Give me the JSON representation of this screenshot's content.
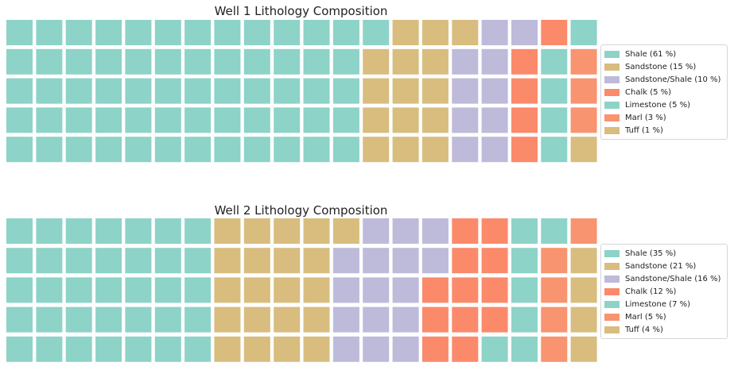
{
  "chart_data": [
    {
      "type": "waffle",
      "title": "Well 1 Lithology Composition",
      "rows": 5,
      "columns": 20,
      "grid": false,
      "legend_position": "right",
      "series": [
        {
          "name": "Shale (61 %)",
          "label": "Shale",
          "value": 61,
          "color": "#8dd3c7"
        },
        {
          "name": "Sandstone (15 %)",
          "label": "Sandstone",
          "value": 15,
          "color": "#d8bd7f"
        },
        {
          "name": "Sandstone/Shale (10 %)",
          "label": "Sandstone/Shale",
          "value": 10,
          "color": "#bebada"
        },
        {
          "name": "Chalk (5 %)",
          "label": "Chalk",
          "value": 5,
          "color": "#fb8a6b"
        },
        {
          "name": "Limestone (5 %)",
          "label": "Limestone",
          "value": 5,
          "color": "#8dd3c7"
        },
        {
          "name": "Marl (3 %)",
          "label": "Marl",
          "value": 3,
          "color": "#f89470"
        },
        {
          "name": "Tuff (1 %)",
          "label": "Tuff",
          "value": 1,
          "color": "#d8bd7f"
        }
      ]
    },
    {
      "type": "waffle",
      "title": "Well 2 Lithology Composition",
      "rows": 5,
      "columns": 20,
      "grid": false,
      "legend_position": "right",
      "series": [
        {
          "name": "Shale (35 %)",
          "label": "Shale",
          "value": 35,
          "color": "#8dd3c7"
        },
        {
          "name": "Sandstone (21 %)",
          "label": "Sandstone",
          "value": 21,
          "color": "#d8bd7f"
        },
        {
          "name": "Sandstone/Shale (16 %)",
          "label": "Sandstone/Shale",
          "value": 16,
          "color": "#bebada"
        },
        {
          "name": "Chalk (12 %)",
          "label": "Chalk",
          "value": 12,
          "color": "#fb8a6b"
        },
        {
          "name": "Limestone (7 %)",
          "label": "Limestone",
          "value": 7,
          "color": "#8dd3c7"
        },
        {
          "name": "Marl (5 %)",
          "label": "Marl",
          "value": 5,
          "color": "#f89470"
        },
        {
          "name": "Tuff (4 %)",
          "label": "Tuff",
          "value": 4,
          "color": "#d8bd7f"
        }
      ]
    }
  ]
}
